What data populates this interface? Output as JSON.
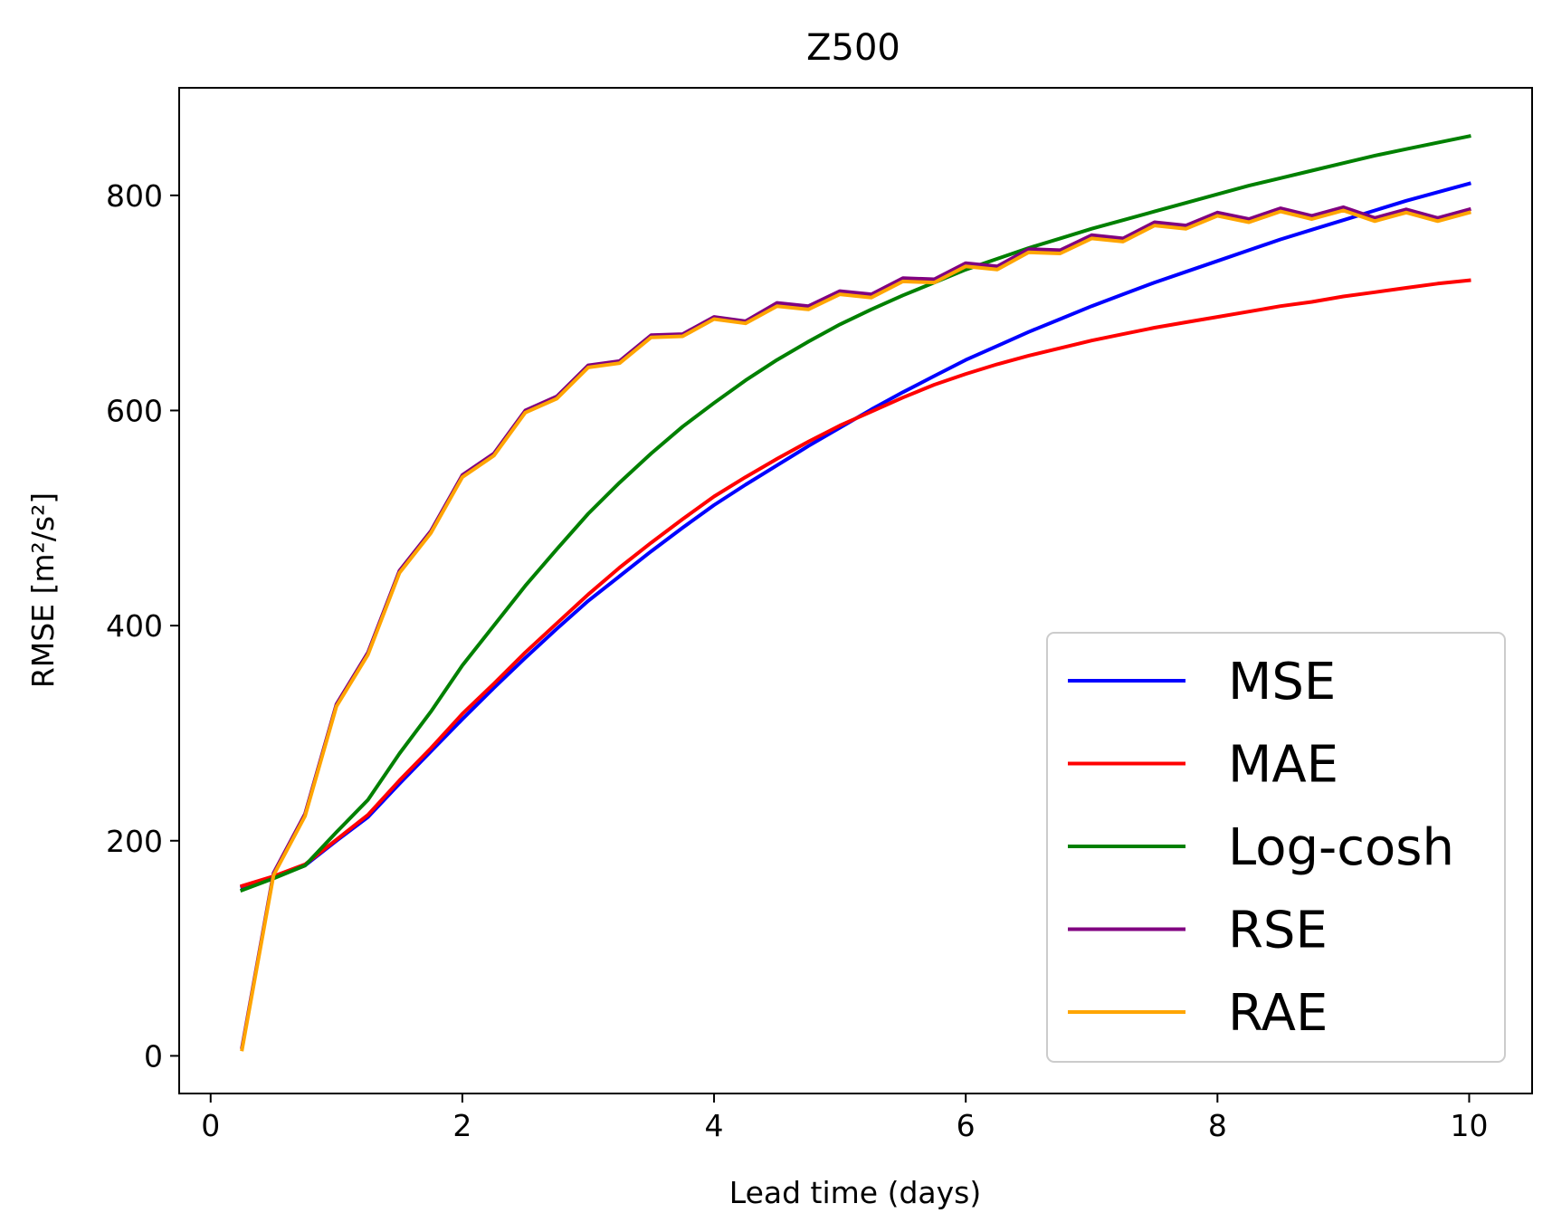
{
  "chart_data": {
    "type": "line",
    "title": "Z500",
    "xlabel": "Lead time (days)",
    "ylabel": "RMSE [m²/s²]",
    "xlim": [
      -0.25,
      10.5
    ],
    "ylim": [
      -35,
      900
    ],
    "xticks": [
      0,
      2,
      4,
      6,
      8,
      10
    ],
    "yticks": [
      0,
      200,
      400,
      600,
      800
    ],
    "grid": false,
    "legend_position": "lower-right",
    "x": [
      0.25,
      0.5,
      0.75,
      1.0,
      1.25,
      1.5,
      1.75,
      2.0,
      2.25,
      2.5,
      2.75,
      3.0,
      3.25,
      3.5,
      3.75,
      4.0,
      4.25,
      4.5,
      4.75,
      5.0,
      5.25,
      5.5,
      5.75,
      6.0,
      6.25,
      6.5,
      6.75,
      7.0,
      7.25,
      7.5,
      7.75,
      8.0,
      8.25,
      8.5,
      8.75,
      9.0,
      9.25,
      9.5,
      9.75,
      10.0
    ],
    "series": [
      {
        "name": "MSE",
        "color": "#0000ff",
        "values": [
          157,
          166,
          177,
          200,
          222,
          253,
          283,
          313,
          342,
          370,
          397,
          423,
          446,
          469,
          491,
          512,
          531,
          549,
          567,
          584,
          601,
          617,
          632,
          647,
          660,
          673,
          685,
          697,
          708,
          719,
          729,
          739,
          749,
          759,
          768,
          777,
          786,
          795,
          803,
          811
        ]
      },
      {
        "name": "MAE",
        "color": "#ff0000",
        "values": [
          158,
          167,
          178,
          201,
          224,
          256,
          286,
          318,
          346,
          375,
          402,
          429,
          454,
          477,
          499,
          520,
          538,
          555,
          571,
          586,
          599,
          612,
          624,
          634,
          643,
          651,
          658,
          665,
          671,
          677,
          682,
          687,
          692,
          697,
          701,
          706,
          710,
          714,
          718,
          721
        ]
      },
      {
        "name": "Log-cosh",
        "color": "#008000",
        "values": [
          154,
          165,
          177,
          208,
          238,
          281,
          320,
          363,
          400,
          437,
          471,
          504,
          533,
          560,
          585,
          607,
          628,
          647,
          664,
          680,
          694,
          707,
          719,
          731,
          741,
          751,
          760,
          769,
          777,
          785,
          793,
          801,
          809,
          816,
          823,
          830,
          837,
          843,
          849,
          855
        ]
      },
      {
        "name": "RSE",
        "color": "#800080",
        "values": [
          8,
          170,
          225,
          327,
          375,
          451,
          488,
          540,
          560,
          600,
          613,
          642,
          646,
          670,
          671,
          687,
          683,
          700,
          697,
          711,
          708,
          723,
          722,
          737,
          734,
          750,
          749,
          763,
          760,
          775,
          772,
          784,
          778,
          788,
          781,
          789,
          779,
          787,
          779,
          787
        ]
      },
      {
        "name": "RAE",
        "color": "#ffa500",
        "values": [
          6,
          168,
          223,
          325,
          373,
          449,
          486,
          538,
          558,
          598,
          611,
          640,
          644,
          668,
          669,
          685,
          681,
          697,
          694,
          708,
          705,
          720,
          719,
          734,
          731,
          747,
          746,
          760,
          757,
          772,
          769,
          781,
          775,
          785,
          778,
          786,
          776,
          784,
          776,
          784
        ]
      }
    ]
  }
}
